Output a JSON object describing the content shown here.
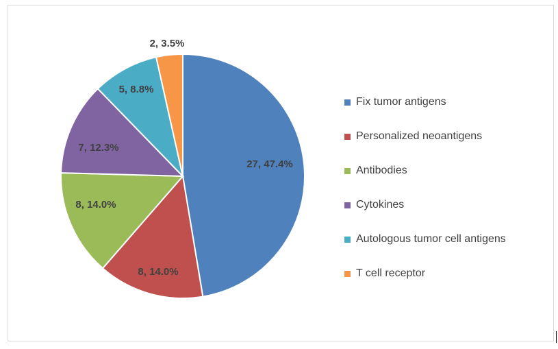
{
  "chart_data": {
    "type": "pie",
    "title": "",
    "slices": [
      {
        "label": "Fix tumor antigens",
        "value": 27,
        "percent": 47.4,
        "data_label": "27, 47.4%",
        "color": "#4F81BD"
      },
      {
        "label": "Personalized neoantigens",
        "value": 8,
        "percent": 14.0,
        "data_label": "8, 14.0%",
        "color": "#C0504D"
      },
      {
        "label": "Antibodies",
        "value": 8,
        "percent": 14.0,
        "data_label": "8, 14.0%",
        "color": "#9BBB59"
      },
      {
        "label": "Cytokines",
        "value": 7,
        "percent": 12.3,
        "data_label": "7, 12.3%",
        "color": "#8064A2"
      },
      {
        "label": "Autologous tumor cell antigens",
        "value": 5,
        "percent": 8.8,
        "data_label": "5, 8.8%",
        "color": "#4BACC6"
      },
      {
        "label": "T cell receptor",
        "value": 2,
        "percent": 3.5,
        "data_label": "2, 3.5%",
        "color": "#F79646"
      }
    ],
    "legend_position": "right"
  }
}
